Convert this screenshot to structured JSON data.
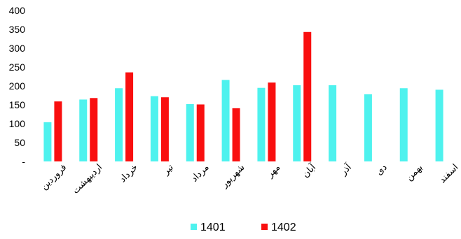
{
  "chart_data": {
    "type": "bar",
    "categories": [
      "فروردین",
      "اردیبهشت",
      "خرداد",
      "تیر",
      "مرداد",
      "شهریور",
      "مهر",
      "آبان",
      "آذر",
      "دی",
      "بهمن",
      "اسفند"
    ],
    "series": [
      {
        "name": "1401",
        "color": "#4ef2ee",
        "values": [
          104,
          164,
          194,
          173,
          152,
          216,
          195,
          202,
          202,
          178,
          194,
          190
        ]
      },
      {
        "name": "1402",
        "color": "#f90f0f",
        "values": [
          159,
          168,
          236,
          170,
          151,
          141,
          209,
          343,
          null,
          null,
          null,
          null
        ]
      }
    ],
    "ylim": [
      0,
      400
    ],
    "y_ticks": [
      {
        "value": 0,
        "label": "-"
      },
      {
        "value": 50,
        "label": "50"
      },
      {
        "value": 100,
        "label": "100"
      },
      {
        "value": 150,
        "label": "150"
      },
      {
        "value": 200,
        "label": "200"
      },
      {
        "value": 250,
        "label": "250"
      },
      {
        "value": 300,
        "label": "300"
      },
      {
        "value": 350,
        "label": "350"
      },
      {
        "value": 400,
        "label": "400"
      }
    ],
    "grid": false,
    "legend_position": "bottom-center",
    "title": "",
    "xlabel": "",
    "ylabel": ""
  }
}
